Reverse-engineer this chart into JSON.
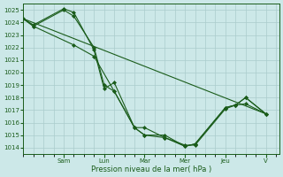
{
  "xlabel": "Pression niveau de la mer( hPa )",
  "background_color": "#cce8e8",
  "grid_color": "#aacccc",
  "line_color": "#1a5c1a",
  "ylim": [
    1013.5,
    1025.5
  ],
  "yticks": [
    1014,
    1015,
    1016,
    1017,
    1018,
    1019,
    1020,
    1021,
    1022,
    1023,
    1024,
    1025
  ],
  "day_labels": [
    "Sam",
    "Lun",
    "Mar",
    "Mer",
    "Jeu",
    "V"
  ],
  "day_positions": [
    24,
    48,
    72,
    96,
    120,
    144
  ],
  "xlim": [
    0,
    152
  ],
  "series": [
    {
      "x": [
        0,
        6,
        24,
        30,
        42,
        48,
        54,
        66,
        72,
        84,
        96,
        102,
        120,
        126,
        132,
        144
      ],
      "y": [
        1024.3,
        1023.7,
        1025.0,
        1024.5,
        1022.0,
        1019.0,
        1018.5,
        1015.6,
        1015.6,
        1014.8,
        1014.2,
        1014.2,
        1017.1,
        1017.4,
        1018.0,
        1016.7
      ],
      "marker": "D"
    },
    {
      "x": [
        0,
        6,
        24,
        30,
        42,
        48,
        54,
        66,
        72,
        84,
        96,
        102,
        120,
        126,
        132,
        144
      ],
      "y": [
        1024.3,
        1023.8,
        1025.1,
        1024.8,
        1021.8,
        1018.7,
        1019.2,
        1015.6,
        1015.0,
        1014.8,
        1014.1,
        1014.3,
        1017.2,
        1017.4,
        1017.5,
        1016.7
      ],
      "marker": "D"
    },
    {
      "x": [
        0,
        6,
        30,
        42,
        54,
        66,
        72,
        84,
        96,
        102,
        120,
        126,
        132,
        144
      ],
      "y": [
        1024.3,
        1023.7,
        1022.2,
        1021.3,
        1018.5,
        1015.6,
        1015.0,
        1015.0,
        1014.1,
        1014.3,
        1017.2,
        1017.4,
        1018.0,
        1016.7
      ],
      "marker": "D"
    },
    {
      "x": [
        0,
        144
      ],
      "y": [
        1024.3,
        1016.7
      ],
      "marker": null
    }
  ]
}
